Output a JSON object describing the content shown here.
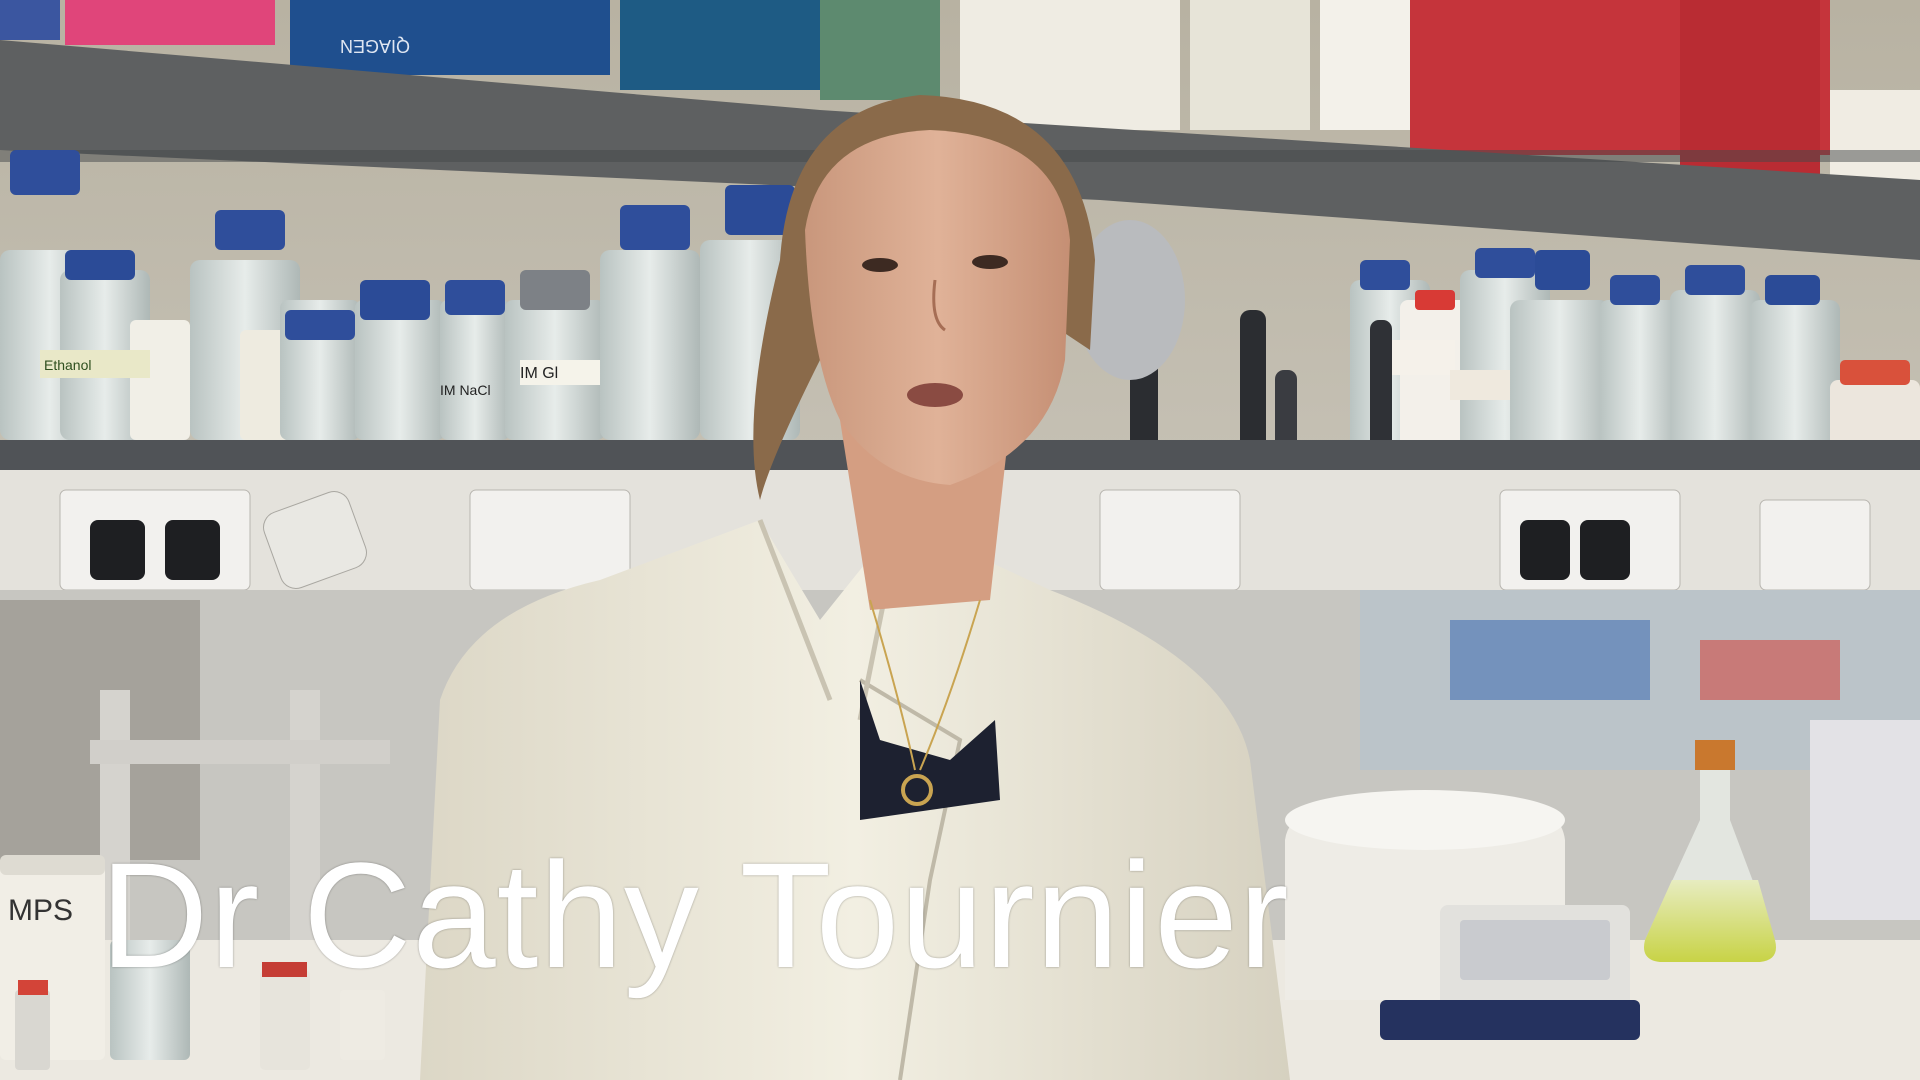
{
  "caption": {
    "name": "Dr Cathy Tournier"
  },
  "scene": {
    "box_brand": "QIAGEN",
    "jar_labels": [
      "IM NaCl",
      "IM Gl",
      "MPS",
      "Ethanol"
    ]
  }
}
